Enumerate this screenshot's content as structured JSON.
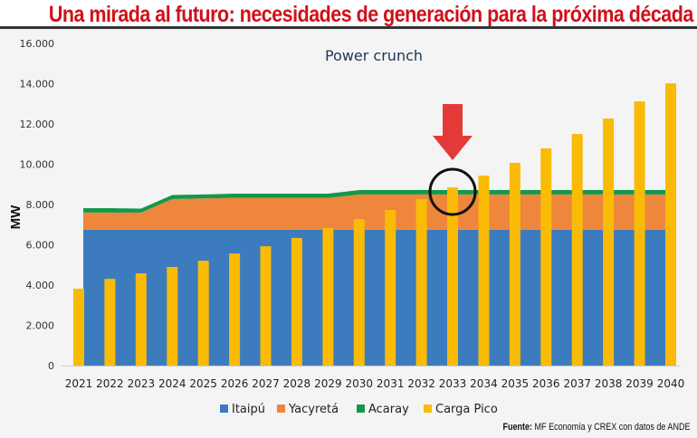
{
  "header": {
    "title": "Una mirada al futuro: necesidades de generación para la próxima década"
  },
  "source": {
    "label": "Fuente:",
    "text": "MF Economía y CREX con datos de ANDE"
  },
  "annotations": {
    "arrow": "down-arrow-icon pointing at 2033",
    "circle_highlight_year": "2033"
  },
  "chart_data": {
    "type": "bar",
    "title": "Power crunch",
    "xlabel": "",
    "ylabel": "MW",
    "ylim": [
      0,
      16000
    ],
    "yticks": [
      0,
      2000,
      4000,
      6000,
      8000,
      10000,
      12000,
      14000,
      16000
    ],
    "ytick_labels": [
      "0",
      "2.000",
      "4.000",
      "6.000",
      "8.000",
      "10.000",
      "12.000",
      "14.000",
      "16.000"
    ],
    "grid": false,
    "legend_position": "bottom",
    "categories": [
      "2021",
      "2022",
      "2023",
      "2024",
      "2025",
      "2026",
      "2027",
      "2028",
      "2029",
      "2030",
      "2031",
      "2032",
      "2033",
      "2034",
      "2035",
      "2036",
      "2037",
      "2038",
      "2039",
      "2040"
    ],
    "series": [
      {
        "name": "Itaipú",
        "kind": "stacked-area",
        "color": "#3d7bbf",
        "values": [
          6750,
          6750,
          6750,
          6750,
          6750,
          6750,
          6750,
          6750,
          6750,
          6750,
          6750,
          6750,
          6750,
          6750,
          6750,
          6750,
          6750,
          6750,
          6750,
          6750
        ]
      },
      {
        "name": "Yacyretá",
        "kind": "stacked-area",
        "color": "#ee863c",
        "values": [
          850,
          850,
          850,
          1520,
          1550,
          1580,
          1580,
          1580,
          1580,
          1750,
          1750,
          1750,
          1750,
          1750,
          1750,
          1750,
          1750,
          1750,
          1750,
          1750
        ]
      },
      {
        "name": "Acaray",
        "kind": "stacked-area",
        "color": "#13984a",
        "values": [
          220,
          220,
          200,
          200,
          200,
          210,
          210,
          210,
          210,
          220,
          220,
          220,
          220,
          220,
          220,
          220,
          220,
          220,
          220,
          220
        ]
      },
      {
        "name": "Carga Pico",
        "kind": "bar",
        "color": "#f9bb06",
        "values": [
          3820,
          4310,
          4580,
          4900,
          5210,
          5570,
          5930,
          6340,
          6830,
          7280,
          7730,
          8270,
          8850,
          9440,
          10070,
          10790,
          11500,
          12270,
          13120,
          14020
        ]
      }
    ]
  }
}
